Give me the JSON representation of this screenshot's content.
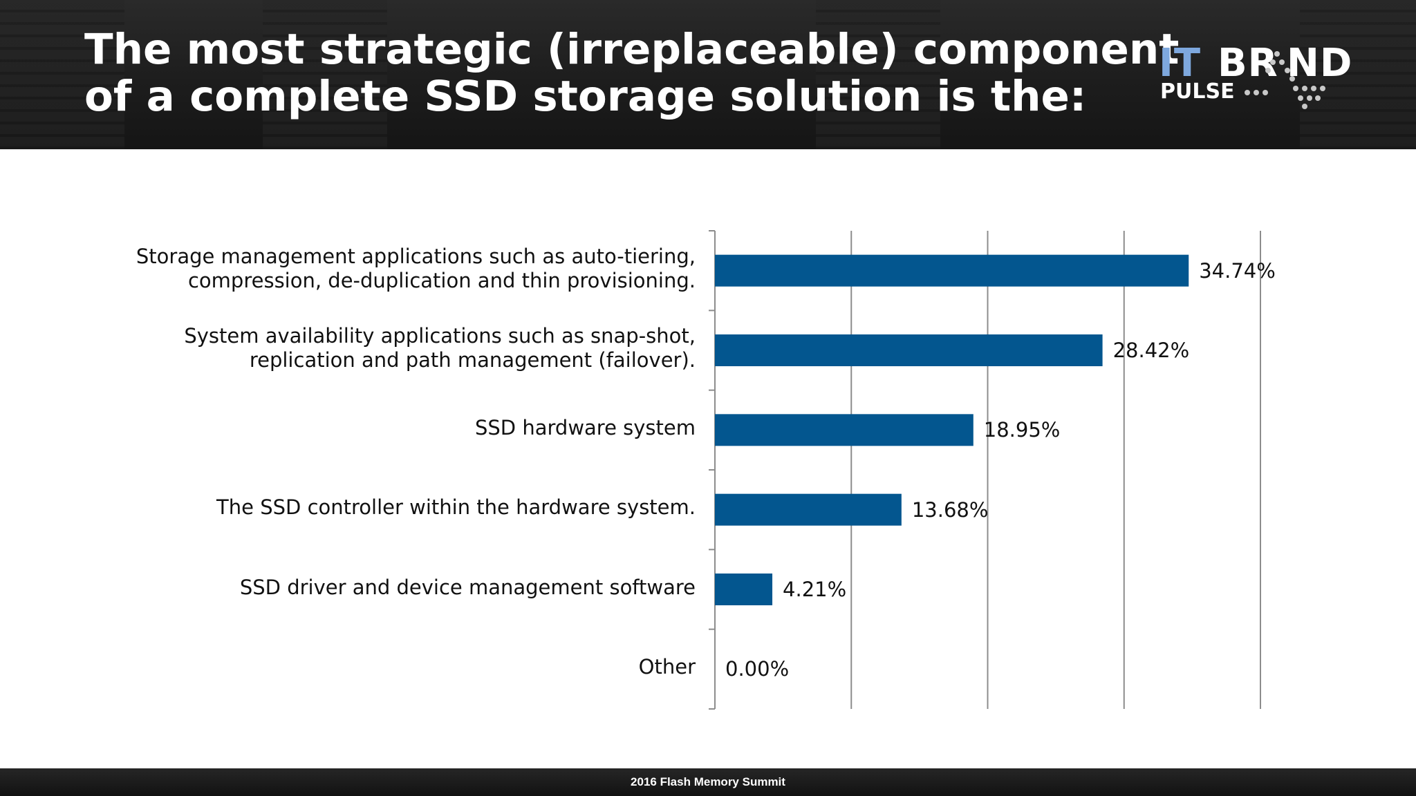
{
  "header": {
    "title_line1": "The most strategic (irreplaceable) component",
    "title_line2": "of a complete SSD storage solution is the:"
  },
  "logo": {
    "it": "IT",
    "brand": "BR ND",
    "pulse": "PULSE"
  },
  "footer": {
    "text": "2016 Flash Memory Summit"
  },
  "colors": {
    "bar": "#03568f",
    "grid": "#8c8c8c",
    "logo_it": "#7ea8de"
  },
  "chart_data": {
    "type": "bar",
    "orientation": "horizontal",
    "categories": [
      [
        "Storage management applications such as auto-tiering,",
        "compression, de-duplication and thin provisioning."
      ],
      [
        "System availability applications such as snap-shot,",
        "replication and path management (failover)."
      ],
      [
        "SSD hardware system"
      ],
      [
        "The SSD controller within the hardware system."
      ],
      [
        "SSD driver and device management software"
      ],
      [
        "Other"
      ]
    ],
    "values": [
      34.74,
      28.42,
      18.95,
      13.68,
      4.21,
      0.0
    ],
    "value_labels": [
      "34.74%",
      "28.42%",
      "18.95%",
      "13.68%",
      "4.21%",
      "0.00%"
    ],
    "xlim": [
      0,
      40
    ],
    "grid_step": 10,
    "grid": true,
    "legend": "none"
  }
}
